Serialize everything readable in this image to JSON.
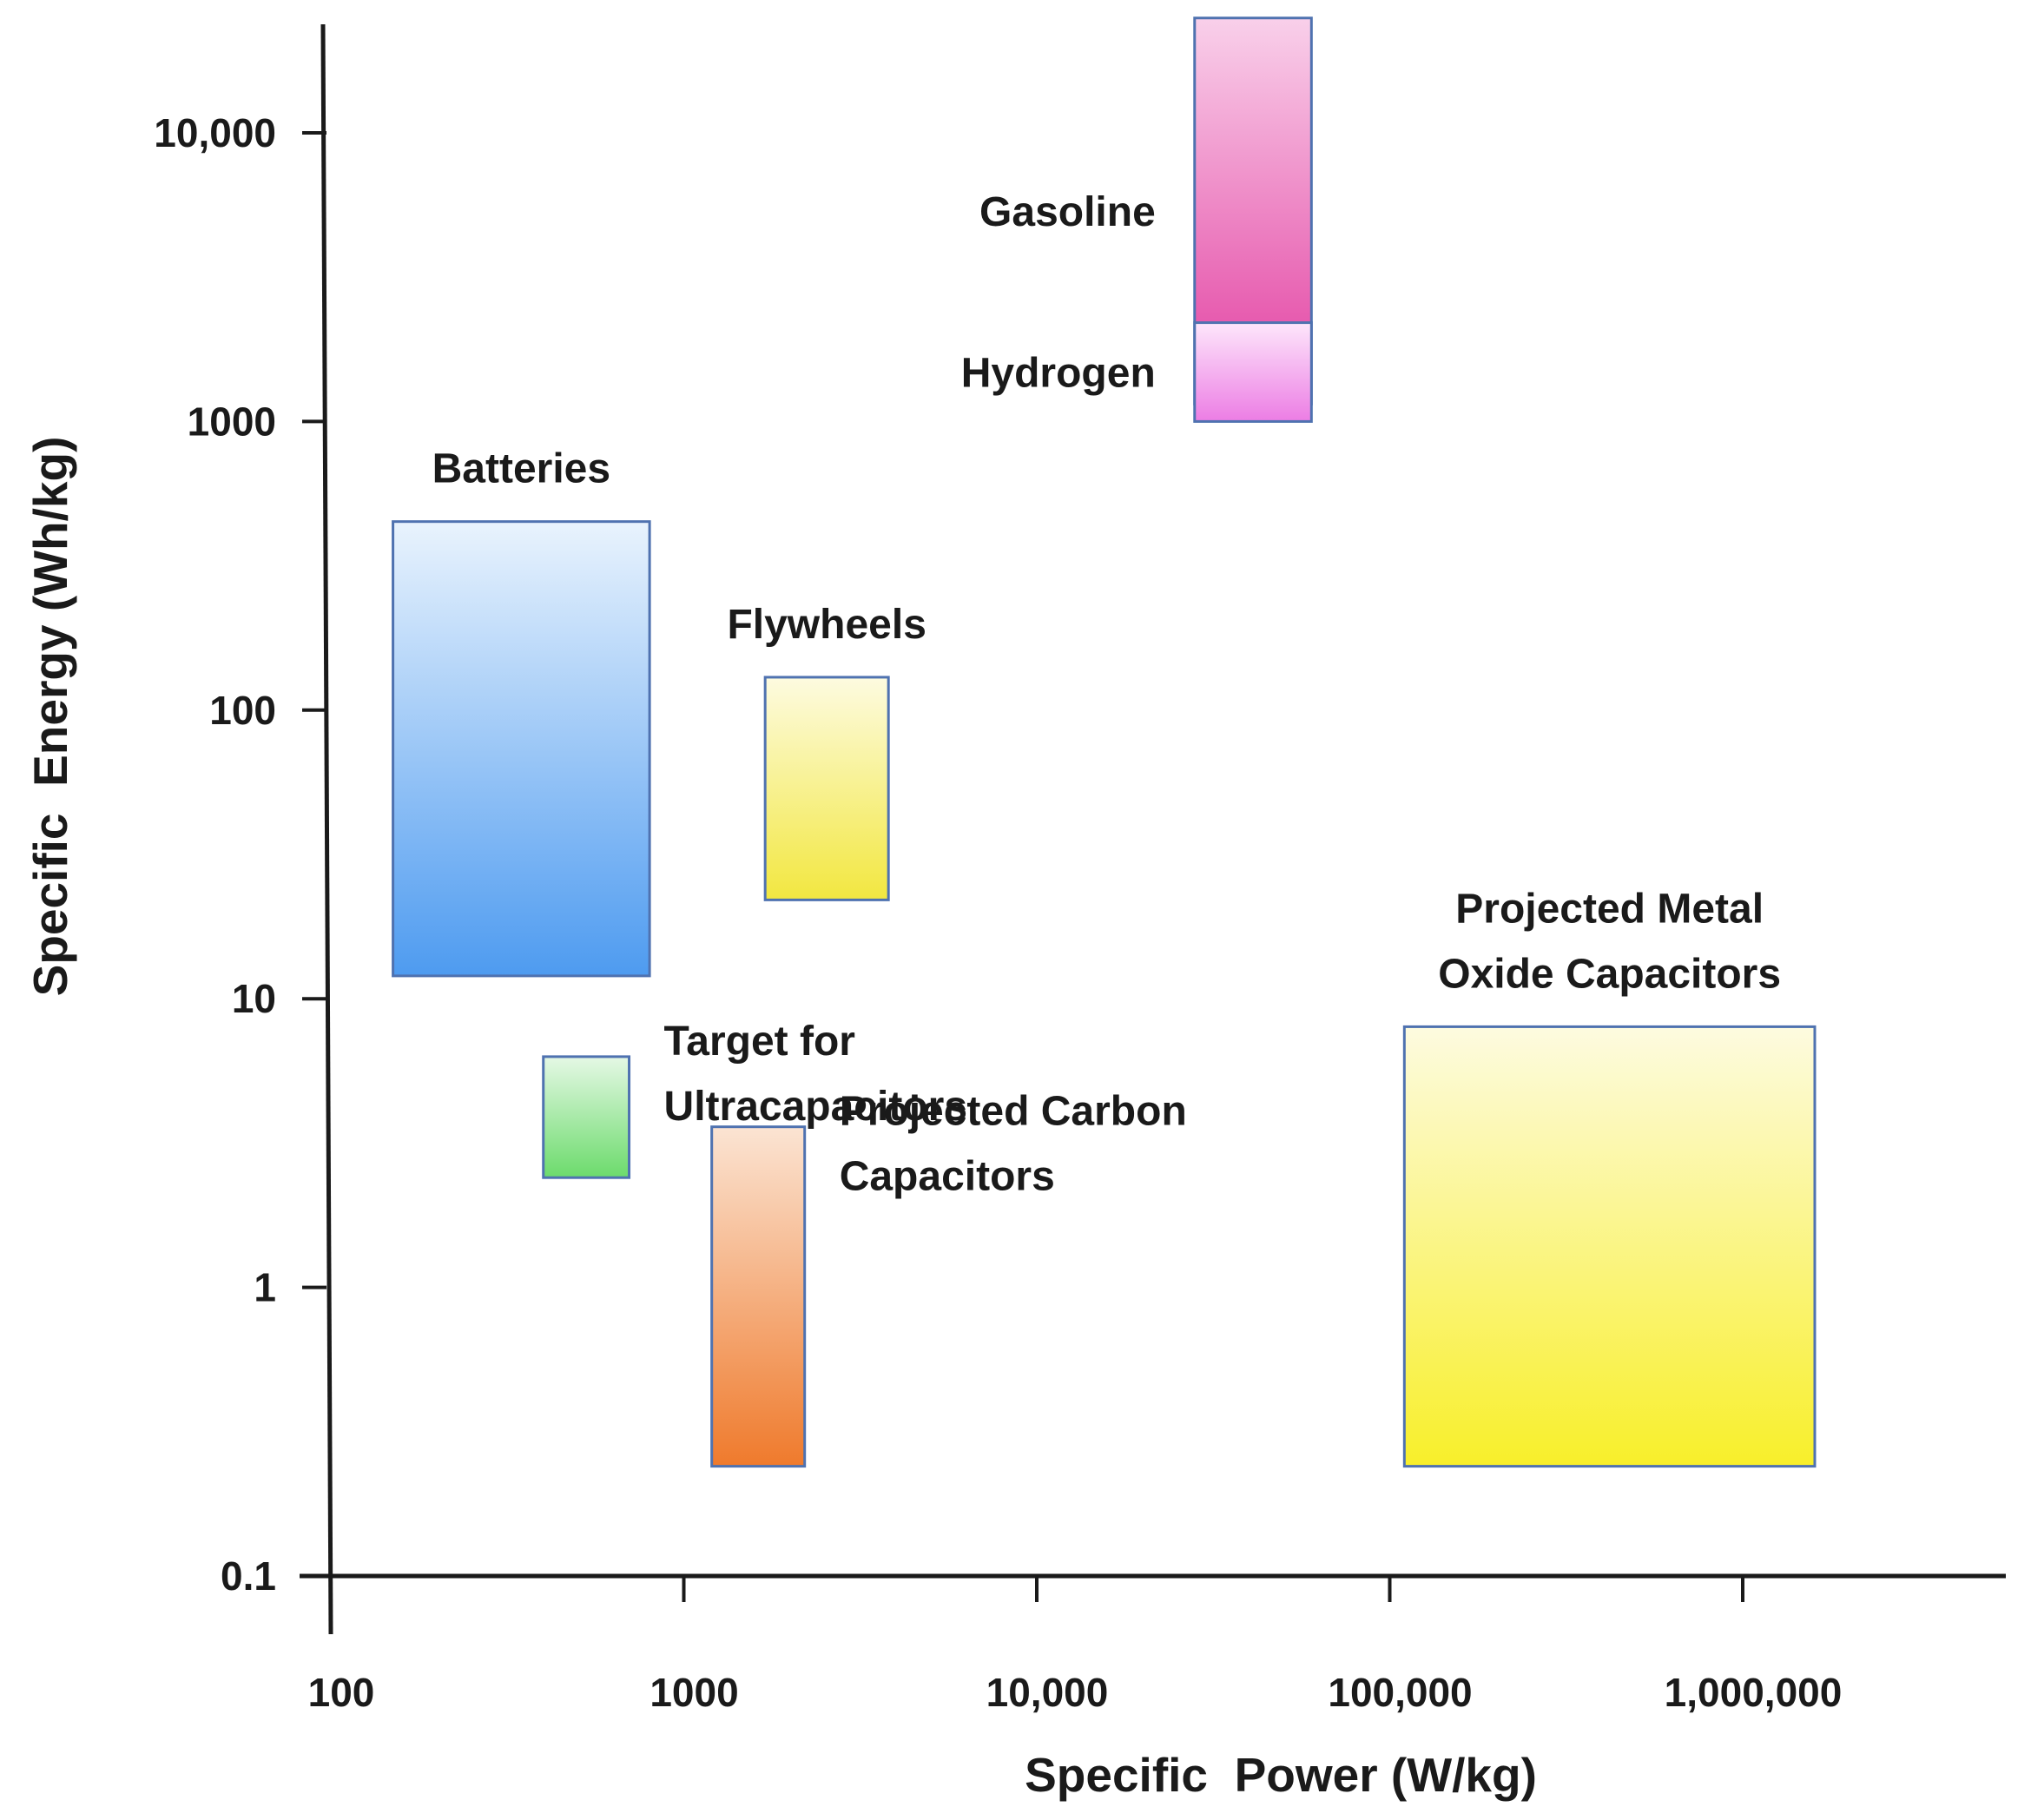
{
  "chart_data": {
    "type": "range-box",
    "xlabel": "Specific  Power (W/kg)",
    "ylabel": "Specific  Energy (Wh/kg)",
    "x_scale": "log",
    "y_scale": "log",
    "xlim": [
      100,
      4000000
    ],
    "ylim": [
      0.1,
      30000
    ],
    "grid": false,
    "x_ticks": [
      {
        "value": 100,
        "label": "100"
      },
      {
        "value": 1000,
        "label": "1000"
      },
      {
        "value": 10000,
        "label": "10,000"
      },
      {
        "value": 100000,
        "label": "100,000"
      },
      {
        "value": 1000000,
        "label": "1,000,000"
      }
    ],
    "y_ticks": [
      {
        "value": 0.1,
        "label": "0.1"
      },
      {
        "value": 1,
        "label": "1"
      },
      {
        "value": 10,
        "label": "10"
      },
      {
        "value": 100,
        "label": "100"
      },
      {
        "value": 1000,
        "label": "1000"
      },
      {
        "value": 10000,
        "label": "10,000"
      }
    ],
    "boxes": [
      {
        "name": "Gasoline",
        "label_lines": [
          "Gasoline"
        ],
        "x_min": 28000,
        "x_max": 60000,
        "y_min": 1150,
        "y_max": 25000,
        "color_top": "#f9d0ea",
        "color_bottom": "#e23c9f",
        "label_pos": "left"
      },
      {
        "name": "Hydrogen",
        "label_lines": [
          "Hydrogen"
        ],
        "x_min": 28000,
        "x_max": 60000,
        "y_min": 1000,
        "y_max": 2200,
        "color_top": "#fde6fb",
        "color_bottom": "#ec7de4",
        "label_pos": "left"
      },
      {
        "name": "Batteries",
        "label_lines": [
          "Batteries"
        ],
        "x_min": 150,
        "x_max": 800,
        "y_min": 12,
        "y_max": 450,
        "color_top": "#e9f3fd",
        "color_bottom": "#4e9bf0",
        "label_pos": "above"
      },
      {
        "name": "Flywheels",
        "label_lines": [
          "Flywheels"
        ],
        "x_min": 1700,
        "x_max": 3800,
        "y_min": 22,
        "y_max": 130,
        "color_top": "#fdfbe0",
        "color_bottom": "#f2e740",
        "label_pos": "above"
      },
      {
        "name": "Target for Ultracapacitors",
        "label_lines": [
          "Target for",
          "Ultracapacitors"
        ],
        "x_min": 400,
        "x_max": 700,
        "y_min": 2.4,
        "y_max": 6.3,
        "color_top": "#e5f8e5",
        "color_bottom": "#6cdb6c",
        "label_pos": "right"
      },
      {
        "name": "Projected Carbon Capacitors",
        "label_lines": [
          "Projected Carbon",
          "Capacitors"
        ],
        "x_min": 1200,
        "x_max": 2200,
        "y_min": 0.24,
        "y_max": 3.6,
        "color_top": "#fbe4d3",
        "color_bottom": "#ef7a2c",
        "label_pos": "right"
      },
      {
        "name": "Projected Metal Oxide Capacitors",
        "label_lines": [
          "Projected Metal",
          "Oxide Capacitors"
        ],
        "x_min": 110000,
        "x_max": 1600000,
        "y_min": 0.24,
        "y_max": 8,
        "color_top": "#fdfbe0",
        "color_bottom": "#f8ef2a",
        "label_pos": "above"
      }
    ]
  }
}
